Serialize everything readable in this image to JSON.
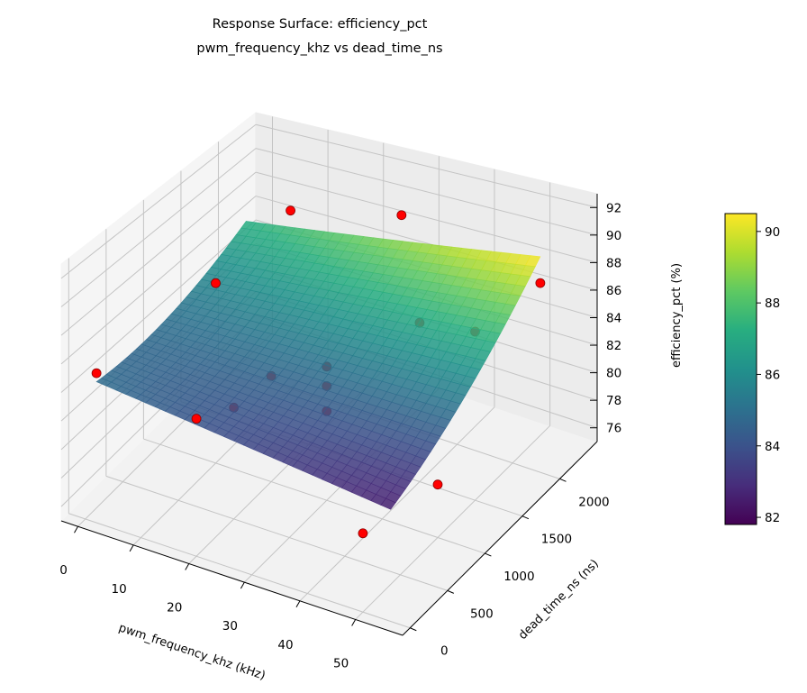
{
  "chart_data": {
    "type": "surface3d",
    "title": "Response Surface: efficiency_pct",
    "subtitle": "pwm_frequency_khz vs dead_time_ns",
    "xlabel": "pwm_frequency_khz (kHz)",
    "ylabel": "dead_time_ns (ns)",
    "zlabel": "efficiency_pct (%)",
    "xlim": [
      -3,
      58.5
    ],
    "ylim": [
      -100,
      2500
    ],
    "zlim": [
      75,
      93
    ],
    "xticks": [
      "0",
      "10",
      "20",
      "30",
      "40",
      "50"
    ],
    "yticks": [
      "0",
      "500",
      "1000",
      "1500",
      "2000"
    ],
    "zticks": [
      "76",
      "78",
      "80",
      "82",
      "84",
      "86",
      "88",
      "90",
      "92"
    ],
    "grid": true,
    "colormap": "viridis",
    "colorbar": {
      "clim": [
        81.8,
        90.5
      ],
      "ticks": [
        "82",
        "84",
        "86",
        "88",
        "90"
      ]
    },
    "surface": {
      "x_range": [
        2,
        55
      ],
      "y_range": [
        0,
        2000
      ],
      "model": "84.99 - 0.0453*x - 0.957*(y/1000) + 0.0538*x*(y/1000) + (y/1000)^2"
    },
    "points": [
      {
        "x": 10,
        "y": 2000,
        "z": 89.0
      },
      {
        "x": 30,
        "y": 2000,
        "z": 90.9
      },
      {
        "x": 10,
        "y": 1000,
        "z": 88.3
      },
      {
        "x": 2,
        "y": 0,
        "z": 85.5
      },
      {
        "x": 20,
        "y": 0,
        "z": 84.5
      },
      {
        "x": 50,
        "y": 1000,
        "z": 78.7
      },
      {
        "x": 50,
        "y": 0,
        "z": 80.3
      },
      {
        "x": 40,
        "y": 1500,
        "z": 86.5
      },
      {
        "x": 50,
        "y": 1500,
        "z": 87.0
      },
      {
        "x": 55,
        "y": 2000,
        "z": 88.6
      },
      {
        "x": 20,
        "y": 1000,
        "z": 82.7
      },
      {
        "x": 20,
        "y": 500,
        "z": 82.9
      },
      {
        "x": 30,
        "y": 1000,
        "z": 84.6
      },
      {
        "x": 30,
        "y": 1000,
        "z": 83.2
      },
      {
        "x": 30,
        "y": 1000,
        "z": 81.4
      }
    ],
    "point_color": "#ff0000"
  }
}
